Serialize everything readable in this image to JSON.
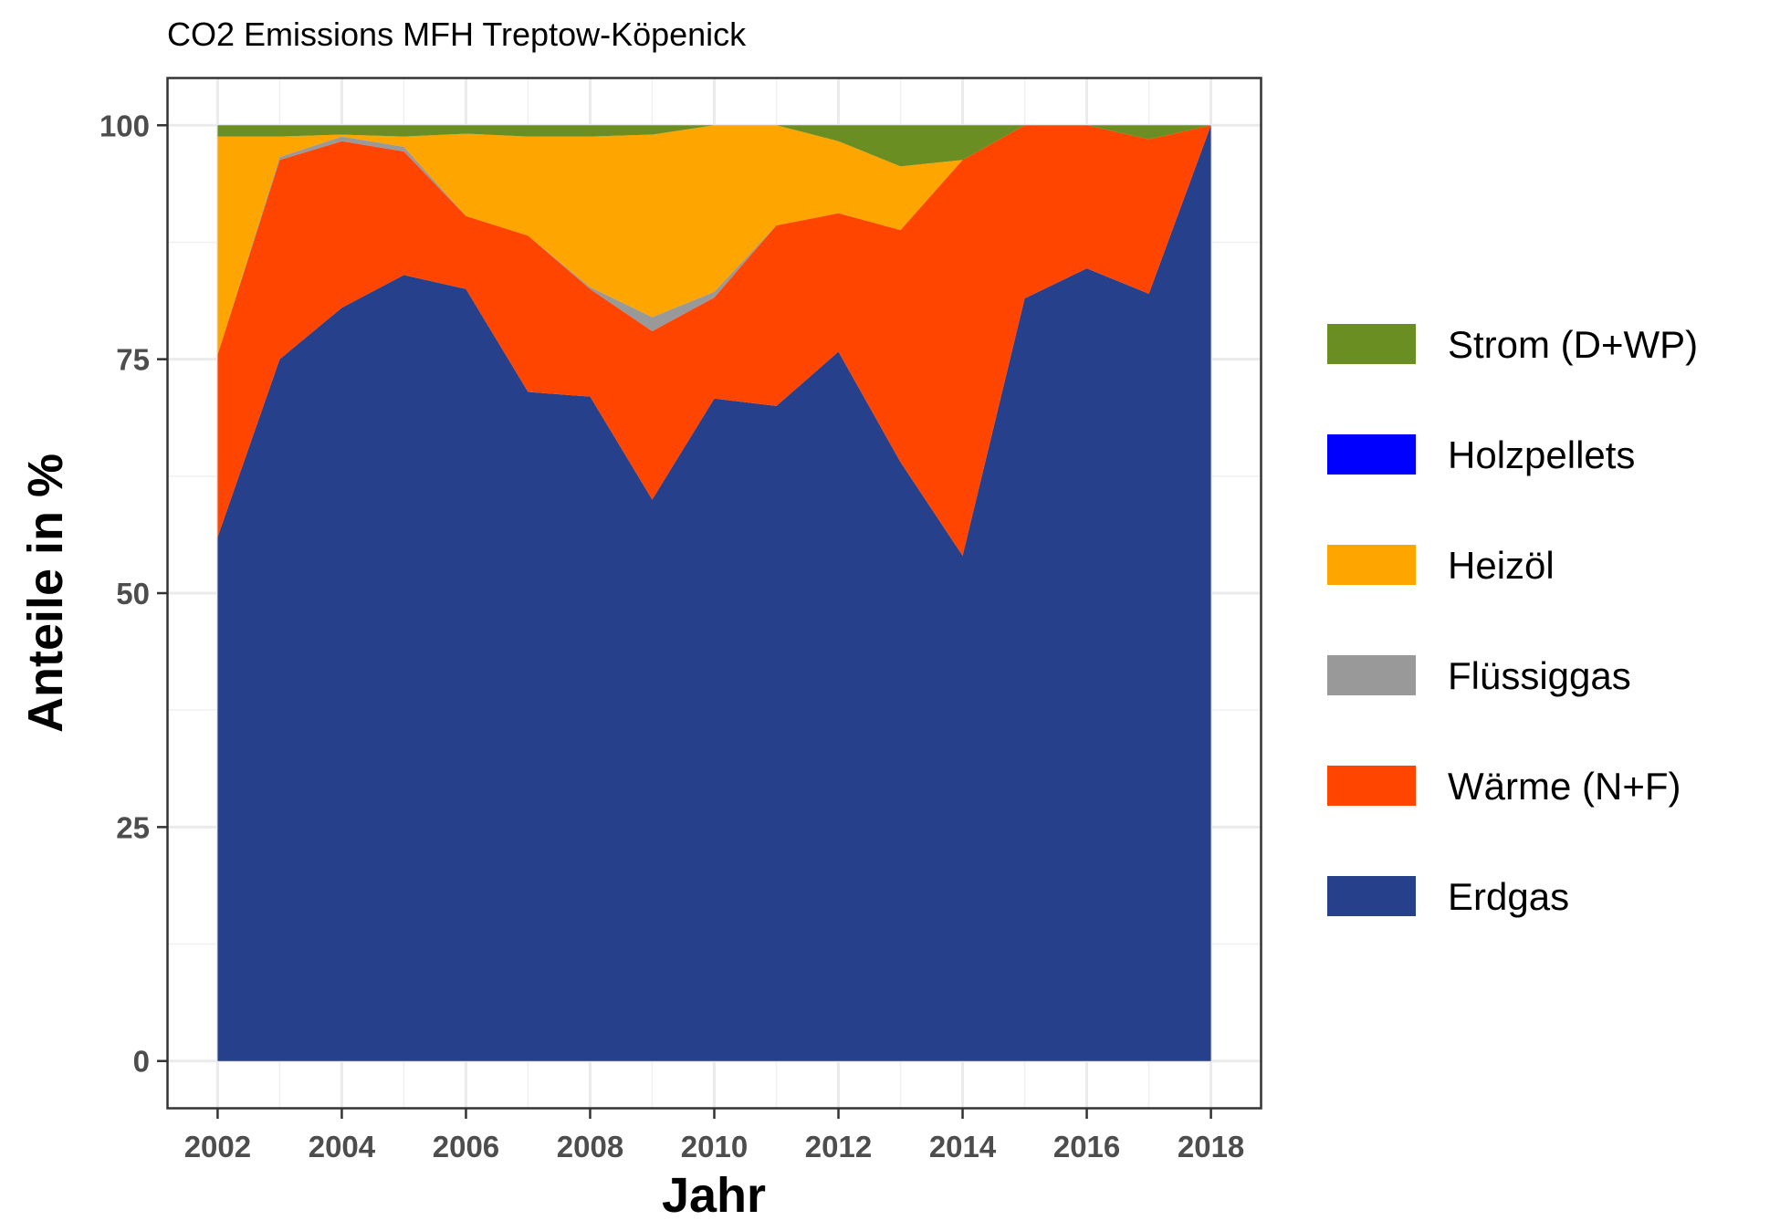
{
  "chart_data": {
    "type": "area",
    "stacked": true,
    "title": "CO2 Emissions MFH Treptow-Köpenick",
    "xlabel": "Jahr",
    "ylabel": "Anteile in %",
    "xlim": [
      2001.2,
      2018.8
    ],
    "ylim": [
      -5,
      105
    ],
    "x": [
      2002,
      2003,
      2004,
      2005,
      2006,
      2007,
      2008,
      2009,
      2010,
      2011,
      2012,
      2013,
      2014,
      2015,
      2016,
      2017,
      2018
    ],
    "x_ticks": [
      "2002",
      "2004",
      "2006",
      "2008",
      "2010",
      "2012",
      "2014",
      "2016",
      "2018"
    ],
    "y_ticks": [
      "0",
      "25",
      "50",
      "75",
      "100"
    ],
    "legend_position": "right",
    "series": [
      {
        "name": "Erdgas",
        "color": "#27408B",
        "values": [
          56,
          75,
          80.5,
          84,
          82.5,
          71.5,
          71,
          60,
          70.8,
          70,
          75.8,
          64,
          54,
          81.5,
          84.7,
          82,
          100
        ]
      },
      {
        "name": "Wärme (N+F)",
        "color": "#FF4500",
        "values": [
          19.5,
          21.3,
          17.8,
          13.2,
          7.8,
          16.7,
          11.5,
          18,
          10.8,
          19.3,
          14.8,
          24.8,
          42.3,
          18.5,
          15.3,
          16.5,
          0
        ]
      },
      {
        "name": "Flüssiggas",
        "color": "#999999",
        "values": [
          0,
          0.3,
          0.5,
          0.5,
          0,
          0,
          0.2,
          1.5,
          0.6,
          0,
          0,
          0,
          0,
          0,
          0,
          0,
          0
        ]
      },
      {
        "name": "Heizöl",
        "color": "#FFA500",
        "values": [
          23.3,
          2.2,
          0.2,
          1.1,
          8.8,
          10.6,
          16.1,
          19.5,
          17.8,
          10.7,
          7.7,
          6.8,
          0,
          0,
          0,
          0,
          0
        ]
      },
      {
        "name": "Holzpellets",
        "color": "#0000FF",
        "values": [
          0,
          0,
          0,
          0,
          0,
          0,
          0,
          0,
          0,
          0,
          0,
          0,
          0,
          0,
          0,
          0,
          0
        ]
      },
      {
        "name": "Strom (D+WP)",
        "color": "#6B8E23",
        "values": [
          1.2,
          1.2,
          1,
          1.2,
          0.9,
          1.2,
          1.2,
          1,
          0,
          0,
          1.7,
          4.4,
          3.7,
          0,
          0,
          1.5,
          0
        ]
      }
    ],
    "legend": [
      "Strom (D+WP)",
      "Holzpellets",
      "Heizöl",
      "Flüssiggas",
      "Wärme (N+F)",
      "Erdgas"
    ]
  }
}
